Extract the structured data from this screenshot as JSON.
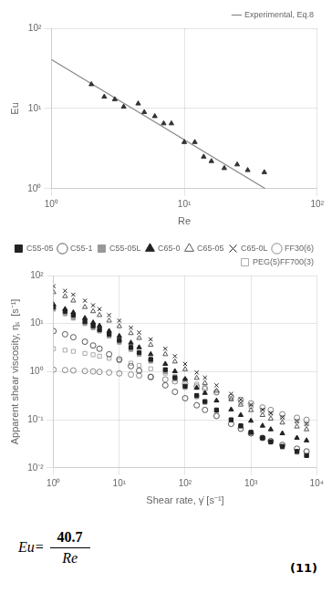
{
  "chart_data": [
    {
      "type": "scatter",
      "log": true,
      "grid": true,
      "legend": "upper right",
      "xlabel": "Re",
      "ylabel": "Eu",
      "xlim": [
        1,
        100
      ],
      "ylim": [
        1,
        100
      ],
      "xticks": [
        {
          "value": 1,
          "label": "10⁰"
        },
        {
          "value": 10,
          "label": "10¹"
        },
        {
          "value": 100,
          "label": "10²"
        }
      ],
      "yticks": [
        {
          "value": 1,
          "label": "10⁰"
        },
        {
          "value": 10,
          "label": "10¹"
        },
        {
          "value": 100,
          "label": "10²"
        }
      ],
      "series": [
        {
          "type": "scatter",
          "marker": "triangle",
          "color": "#333333",
          "x": [
            2.0,
            2.5,
            3.0,
            3.5,
            4.5,
            5.0,
            6.0,
            7.0,
            8.0,
            10.0,
            12.0,
            14.0,
            16.0,
            20.0,
            25.0,
            30.0,
            40.0
          ],
          "values": [
            20.0,
            14.0,
            13.0,
            10.5,
            11.5,
            9.0,
            8.0,
            6.5,
            6.5,
            3.8,
            3.8,
            2.5,
            2.2,
            1.8,
            2.0,
            1.7,
            1.6
          ]
        },
        {
          "type": "line",
          "name": "Experimental, Eq.8",
          "color": "#888888",
          "line_style": "solid",
          "x": [
            1,
            40.7
          ],
          "values": [
            40.7,
            1
          ]
        }
      ]
    },
    {
      "type": "scatter",
      "log": true,
      "grid": true,
      "legend": "upper right",
      "xlabel": "Shear rate, γ̇ [s⁻¹]",
      "ylabel": "Apparent shear viscosity, ηₛ  [s⁻¹]",
      "xlim": [
        1,
        10000
      ],
      "ylim": [
        0.01,
        100
      ],
      "xticks": [
        {
          "value": 1,
          "label": "10⁰"
        },
        {
          "value": 10,
          "label": "10¹"
        },
        {
          "value": 100,
          "label": "10²"
        },
        {
          "value": 1000,
          "label": "10³"
        },
        {
          "value": 10000,
          "label": "10⁴"
        }
      ],
      "yticks": [
        {
          "value": 0.01,
          "label": "10⁻²"
        },
        {
          "value": 0.1,
          "label": "10⁻¹"
        },
        {
          "value": 1,
          "label": "10⁰"
        },
        {
          "value": 10,
          "label": "10¹"
        },
        {
          "value": 100,
          "label": "10²"
        }
      ],
      "x": [
        1,
        1.5,
        2,
        3,
        4,
        5,
        7,
        10,
        15,
        20,
        30,
        50,
        70,
        100,
        150,
        200,
        300,
        500,
        700,
        1000,
        1500,
        2000,
        3000,
        5000,
        7000
      ],
      "series": [
        {
          "name": "C55-05",
          "marker": "square",
          "color": "#222222",
          "values": [
            22,
            18,
            15,
            11,
            9,
            7.5,
            6,
            4.5,
            3.2,
            2.5,
            1.8,
            1.1,
            0.75,
            0.5,
            0.32,
            0.24,
            0.16,
            0.1,
            0.075,
            0.055,
            0.042,
            0.035,
            0.028,
            0.022,
            0.018
          ]
        },
        {
          "name": "C55-1",
          "marker": "circle_open",
          "color": "#555555",
          "values": [
            7,
            6,
            5.2,
            4.2,
            3.5,
            3.0,
            2.3,
            1.8,
            1.3,
            1.05,
            0.78,
            0.52,
            0.38,
            0.28,
            0.2,
            0.16,
            0.12,
            0.082,
            0.065,
            0.052,
            0.042,
            0.036,
            0.03,
            0.025,
            0.022
          ]
        },
        {
          "name": "C55-05L",
          "marker": "square",
          "color": "#999999",
          "values": [
            20,
            16,
            13,
            10,
            8.2,
            7,
            5.5,
            4.1,
            2.9,
            2.3,
            1.65,
            1.0,
            0.7,
            0.47,
            0.3,
            0.23,
            0.155,
            0.098,
            0.073,
            0.053,
            0.041,
            0.034,
            0.027,
            0.021,
            0.018
          ]
        },
        {
          "name": "C65-0",
          "marker": "triangle",
          "color": "#222222",
          "values": [
            25,
            20,
            17,
            13,
            10.5,
            9,
            7,
            5.5,
            4.0,
            3.2,
            2.3,
            1.45,
            1.02,
            0.7,
            0.46,
            0.36,
            0.25,
            0.163,
            0.125,
            0.095,
            0.075,
            0.063,
            0.052,
            0.042,
            0.037
          ]
        },
        {
          "name": "C65-05",
          "marker": "triangle_open",
          "color": "#555555",
          "values": [
            45,
            37,
            30,
            22,
            18,
            15,
            11.5,
            8.8,
            6.3,
            5.0,
            3.6,
            2.3,
            1.62,
            1.12,
            0.74,
            0.58,
            0.4,
            0.265,
            0.205,
            0.158,
            0.125,
            0.105,
            0.087,
            0.072,
            0.063
          ]
        },
        {
          "name": "C65-0L",
          "marker": "x",
          "color": "#222222",
          "values": [
            60,
            48,
            40,
            30,
            24,
            20,
            15,
            11.5,
            8.2,
            6.5,
            4.7,
            3.0,
            2.1,
            1.45,
            0.96,
            0.75,
            0.52,
            0.345,
            0.265,
            0.205,
            0.162,
            0.137,
            0.113,
            0.093,
            0.082
          ]
        },
        {
          "name": "FF30(6)",
          "marker": "circle_open",
          "color": "#888888",
          "values": [
            1.1,
            1.08,
            1.06,
            1.03,
            1.01,
            0.99,
            0.96,
            0.92,
            0.87,
            0.83,
            0.77,
            0.69,
            0.63,
            0.56,
            0.49,
            0.44,
            0.37,
            0.3,
            0.26,
            0.22,
            0.18,
            0.16,
            0.13,
            0.11,
            0.1
          ]
        },
        {
          "name": "PEG(5)FF700(3)",
          "marker": "square_open",
          "color": "#aaaaaa",
          "values": [
            3.0,
            2.8,
            2.65,
            2.4,
            2.25,
            2.1,
            1.9,
            1.7,
            1.5,
            1.35,
            1.15,
            0.93,
            0.8,
            0.67,
            0.55,
            0.47,
            0.37,
            0.28,
            0.23,
            0.19,
            0.155,
            0.135,
            0.112,
            0.093,
            0.082
          ]
        }
      ]
    },
    {
      "type": "equation",
      "annotations": {
        "lhs": "Eu=",
        "numerator": "40.7",
        "denominator": "Re",
        "number": "(11)"
      }
    }
  ]
}
